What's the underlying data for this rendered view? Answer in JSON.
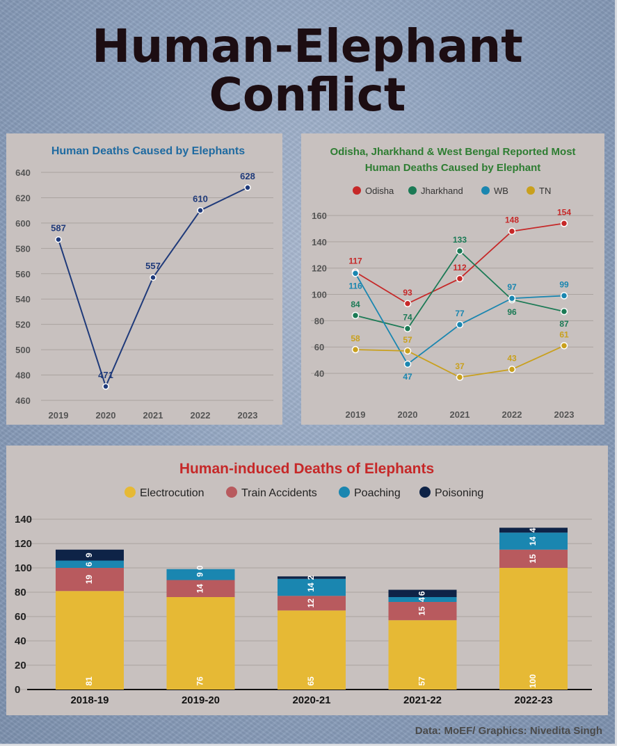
{
  "page": {
    "title_line1": "Human-Elephant",
    "title_line2": "Conflict",
    "source": "Data: MoEF/ Graphics: Nivedita Singh"
  },
  "chart_data": [
    {
      "type": "line",
      "title": "Human Deaths Caused by Elephants",
      "x": [
        "2019",
        "2020",
        "2021",
        "2022",
        "2023"
      ],
      "values": [
        587,
        471,
        557,
        610,
        628
      ],
      "ylim": [
        460,
        640
      ],
      "yticks": [
        460,
        480,
        500,
        520,
        540,
        560,
        580,
        600,
        620,
        640
      ],
      "grid": true,
      "colors": {
        "line": "#1f3a7a",
        "title": "#1f6aa0",
        "label": "#1f3a7a"
      }
    },
    {
      "type": "line",
      "title_lines": [
        "Odisha, Jharkhand & West Bengal Reported Most",
        "Human Deaths Caused by Elephant"
      ],
      "x": [
        "2019",
        "2020",
        "2021",
        "2022",
        "2023"
      ],
      "ylim": [
        30,
        160
      ],
      "yticks": [
        40,
        60,
        80,
        100,
        120,
        140,
        160
      ],
      "legend_position": "top",
      "grid": true,
      "title_color": "#2e7d32",
      "series": [
        {
          "name": "Odisha",
          "values": [
            117,
            93,
            112,
            148,
            154
          ],
          "color": "#c62828"
        },
        {
          "name": "Jharkhand",
          "values": [
            84,
            74,
            133,
            96,
            87
          ],
          "color": "#1b7a55"
        },
        {
          "name": "WB",
          "values": [
            116,
            47,
            77,
            97,
            99
          ],
          "color": "#1a86b0"
        },
        {
          "name": "TN",
          "values": [
            58,
            57,
            37,
            43,
            61
          ],
          "color": "#c9a01d"
        }
      ]
    },
    {
      "type": "bar",
      "stacked": true,
      "title": "Human-induced Deaths of Elephants",
      "categories": [
        "2018-19",
        "2019-20",
        "2020-21",
        "2021-22",
        "2022-23"
      ],
      "ylim": [
        0,
        140
      ],
      "yticks": [
        0,
        20,
        40,
        60,
        80,
        100,
        120,
        140
      ],
      "legend_position": "top",
      "grid": true,
      "title_color": "#c62828",
      "series": [
        {
          "name": "Electrocution",
          "values": [
            81,
            76,
            65,
            57,
            100
          ],
          "color": "#e6b935"
        },
        {
          "name": "Train Accidents",
          "values": [
            19,
            14,
            12,
            15,
            15
          ],
          "color": "#b85a5e"
        },
        {
          "name": "Poaching",
          "values": [
            6,
            9,
            14,
            4,
            14
          ],
          "color": "#1a86b0"
        },
        {
          "name": "Poisoning",
          "values": [
            9,
            0,
            2,
            6,
            4
          ],
          "color": "#0e2347"
        }
      ],
      "data_labels": [
        [
          "81",
          "19",
          "6",
          "9"
        ],
        [
          "76",
          "14",
          "9",
          "0"
        ],
        [
          "65",
          "12",
          "14",
          "2"
        ],
        [
          "57",
          "15",
          "4",
          "6"
        ],
        [
          "100",
          "15",
          "14",
          "4"
        ]
      ]
    }
  ]
}
